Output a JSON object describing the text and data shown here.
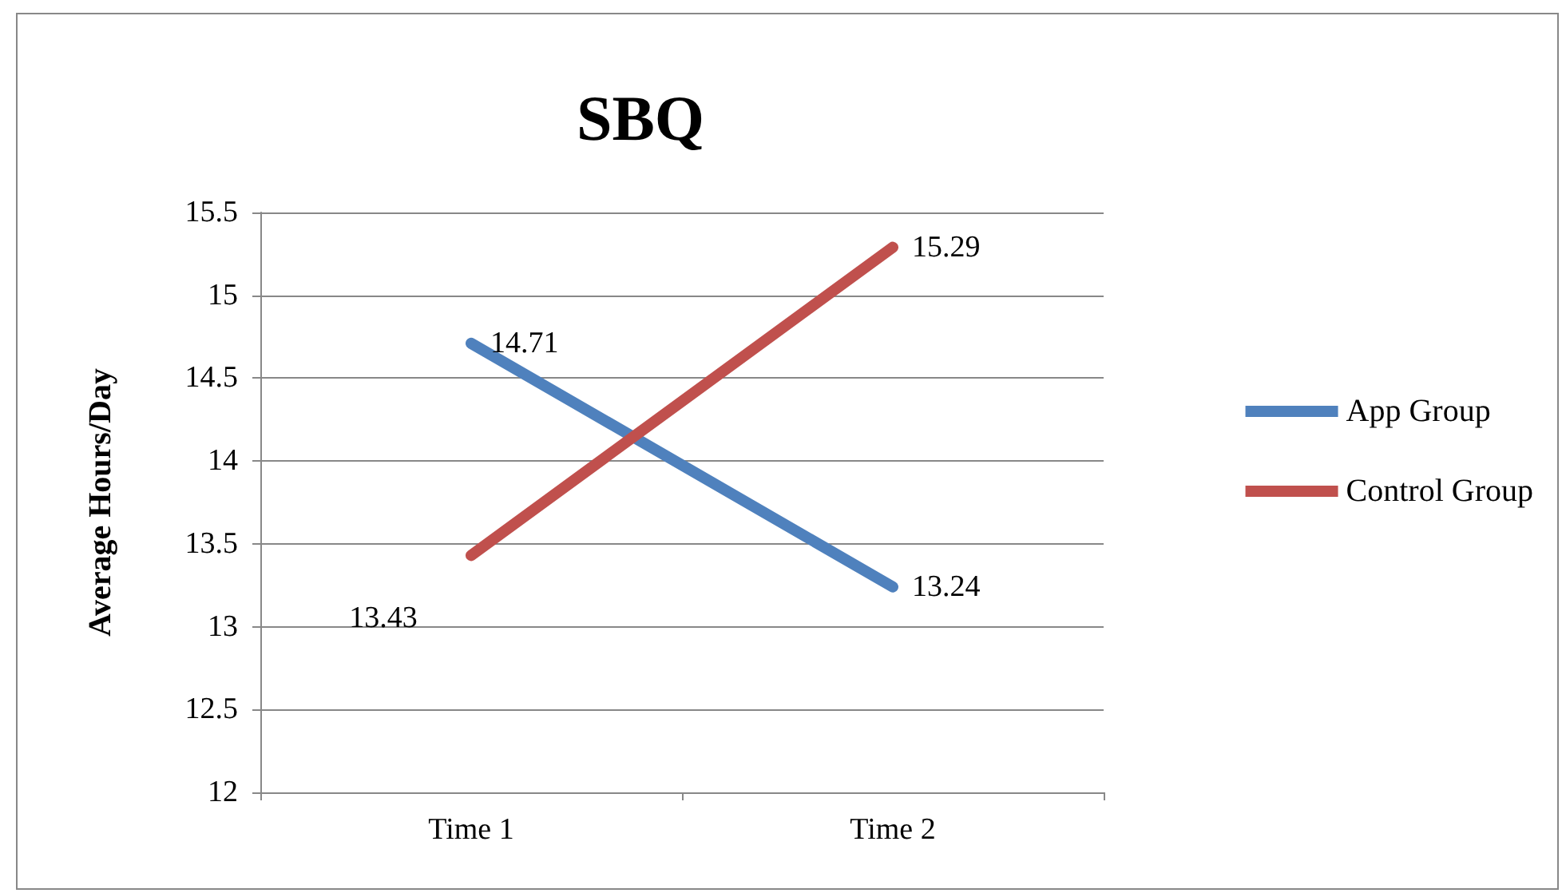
{
  "chart_data": {
    "type": "line",
    "title": "SBQ",
    "ylabel": "Average Hours/Day",
    "categories": [
      "Time 1",
      "Time 2"
    ],
    "series": [
      {
        "name": "App Group",
        "color": "#4f81bd",
        "values": [
          14.71,
          13.24
        ]
      },
      {
        "name": "Control Group",
        "color": "#c0504d",
        "values": [
          13.43,
          15.29
        ]
      }
    ],
    "ylim": [
      12,
      15.5
    ],
    "yticks": [
      12,
      12.5,
      13,
      13.5,
      14,
      14.5,
      15,
      15.5
    ],
    "grid": "y",
    "legend": "right",
    "marker": "none",
    "line_style": "solid",
    "data_labels": true
  }
}
